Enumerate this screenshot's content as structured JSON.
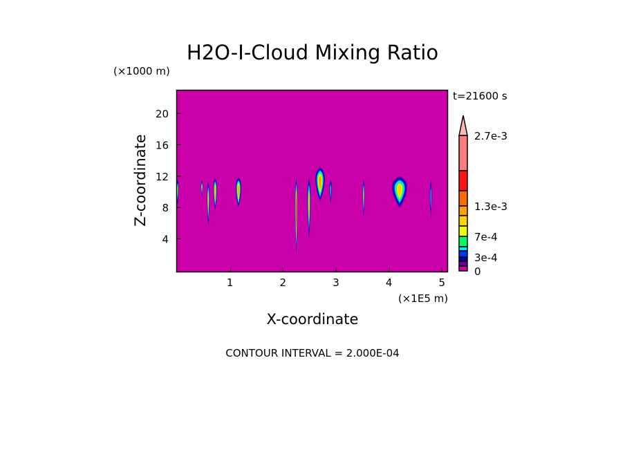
{
  "chart_data": {
    "type": "heatmap",
    "title": "H2O-I-Cloud Mixing Ratio",
    "xlabel": "X-coordinate",
    "ylabel": "Z-coordinate",
    "x_unit": "(×1E5 m)",
    "y_unit": "(×1000 m)",
    "time_label": "t=21600 s",
    "footer": "CONTOUR INTERVAL = 2.000E-04",
    "xlim": [
      0,
      5.1
    ],
    "ylim": [
      0,
      23
    ],
    "x_ticks": [
      "1",
      "2",
      "3",
      "4",
      "5"
    ],
    "y_ticks": [
      "4",
      "8",
      "12",
      "16",
      "20"
    ],
    "background_color": "#cc00aa",
    "colorbar": {
      "labels": [
        "2.7e-3",
        "1.3e-3",
        "7e-4",
        "3e-4",
        "0"
      ],
      "colors_top_to_bottom": [
        "#ff7a7a",
        "#ff1414",
        "#ff6a00",
        "#ffa000",
        "#ffd400",
        "#eeff00",
        "#00ff66",
        "#00e6ff",
        "#0033ff",
        "#0000a8",
        "#6a0099",
        "#cc00aa"
      ],
      "extend_color": "#ffb8b8"
    },
    "cloud_features": [
      {
        "x": 0.01,
        "z_top": 11.6,
        "z_bottom": 8.3,
        "width": 0.05,
        "peak_level": 6
      },
      {
        "x": 0.47,
        "z_top": 11.5,
        "z_bottom": 9.3,
        "width": 0.04,
        "peak_level": 6
      },
      {
        "x": 0.59,
        "z_top": 11.4,
        "z_bottom": 5.5,
        "width": 0.05,
        "peak_level": 7
      },
      {
        "x": 0.72,
        "z_top": 11.8,
        "z_bottom": 7.6,
        "width": 0.08,
        "peak_level": 8
      },
      {
        "x": 1.16,
        "z_top": 11.9,
        "z_bottom": 7.9,
        "width": 0.12,
        "peak_level": 8
      },
      {
        "x": 2.25,
        "z_top": 12.0,
        "z_bottom": 1.8,
        "width": 0.05,
        "peak_level": 10
      },
      {
        "x": 2.49,
        "z_top": 11.9,
        "z_bottom": 3.8,
        "width": 0.07,
        "peak_level": 7
      },
      {
        "x": 2.7,
        "z_top": 13.2,
        "z_bottom": 8.7,
        "width": 0.21,
        "peak_level": 8
      },
      {
        "x": 2.9,
        "z_top": 11.6,
        "z_bottom": 8.3,
        "width": 0.05,
        "peak_level": 4
      },
      {
        "x": 3.52,
        "z_top": 11.7,
        "z_bottom": 6.5,
        "width": 0.04,
        "peak_level": 6
      },
      {
        "x": 4.2,
        "z_top": 12.0,
        "z_bottom": 7.9,
        "width": 0.34,
        "peak_level": 7
      },
      {
        "x": 4.79,
        "z_top": 11.6,
        "z_bottom": 6.3,
        "width": 0.03,
        "peak_level": 4
      }
    ]
  }
}
